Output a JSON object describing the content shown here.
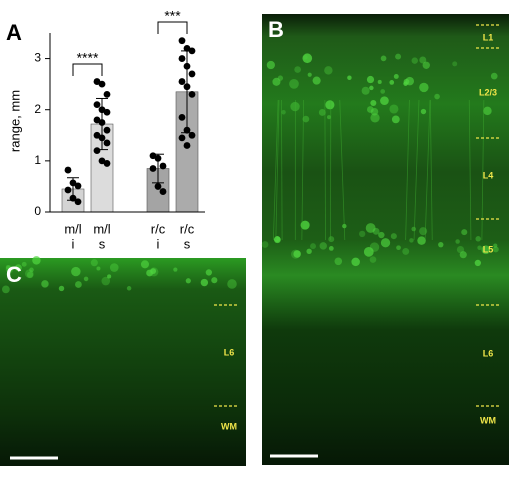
{
  "panel_labels": [
    "A",
    "B",
    "C"
  ],
  "chart_data": {
    "type": "bar",
    "y_label": "range, mm",
    "categories": [
      [
        "m/l",
        "i"
      ],
      [
        "m/l",
        "s"
      ],
      [
        "r/c",
        "i"
      ],
      [
        "r/c",
        "s"
      ]
    ],
    "values": [
      0.45,
      1.72,
      0.85,
      2.35
    ],
    "errors": [
      0.22,
      0.5,
      0.28,
      0.8
    ],
    "colors": [
      "#d4d4d4",
      "#dcdcdc",
      "#a4a4a4",
      "#ababab"
    ],
    "points": [
      [
        0.82,
        0.57,
        0.51,
        0.43,
        0.27,
        0.2
      ],
      [
        2.55,
        2.5,
        2.3,
        2.1,
        2.0,
        1.95,
        1.8,
        1.75,
        1.6,
        1.5,
        1.45,
        1.35,
        1.2,
        1.0,
        0.95
      ],
      [
        1.1,
        1.05,
        0.9,
        0.85,
        0.5,
        0.4
      ],
      [
        3.35,
        3.2,
        3.15,
        3.0,
        2.85,
        2.7,
        2.55,
        2.45,
        2.3,
        1.85,
        1.6,
        1.5,
        1.45,
        1.3
      ]
    ],
    "annotations": [
      "****",
      "***"
    ],
    "ylim": [
      0,
      3.5
    ],
    "yticks": [
      0,
      1,
      2,
      3
    ]
  },
  "image_b_layers": [
    "L1",
    "L2/3",
    "L4",
    "L5",
    "L6",
    "WM"
  ],
  "image_c_layers": [
    "L6",
    "WM"
  ]
}
